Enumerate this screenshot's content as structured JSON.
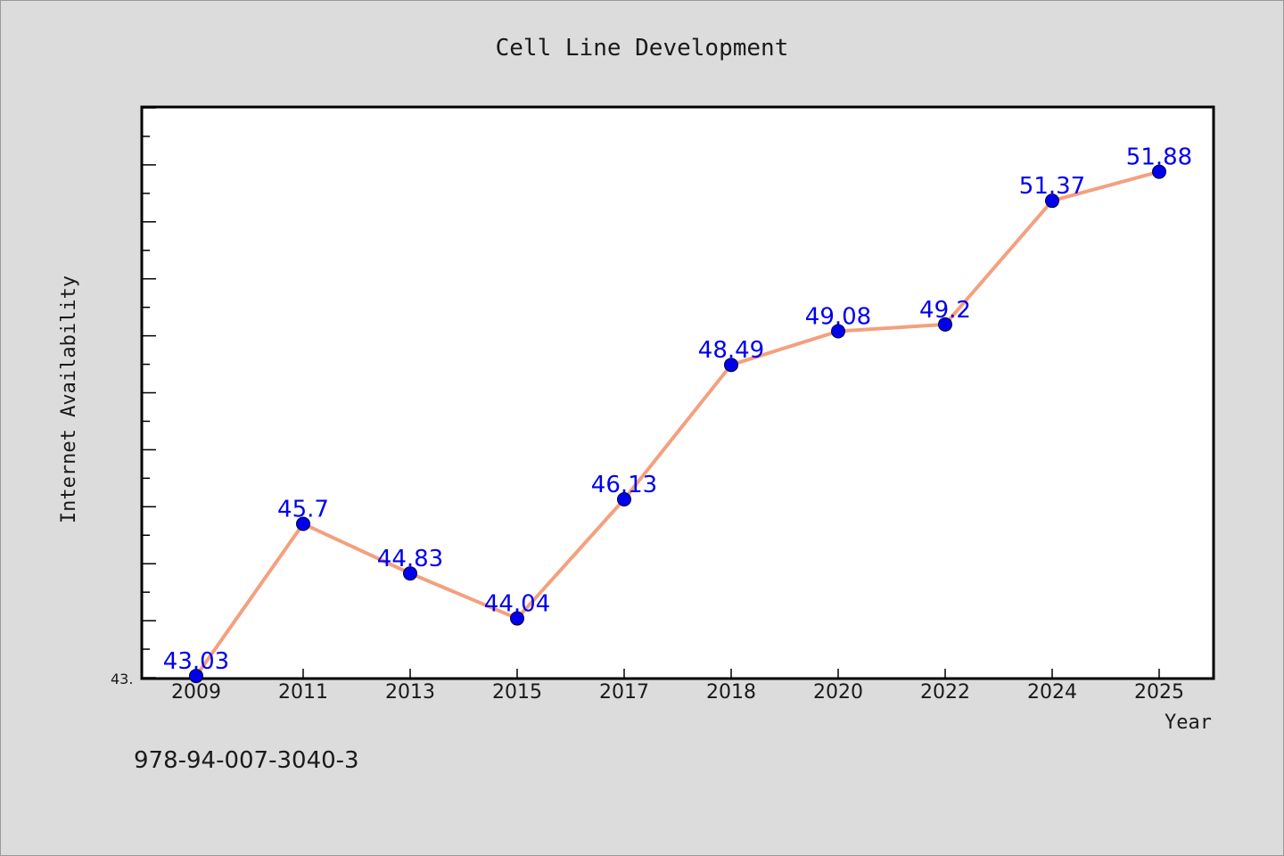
{
  "chart_data": {
    "type": "line",
    "title": "Cell Line Development",
    "xlabel": "Year",
    "ylabel": "Internet Availability",
    "categories": [
      "2009",
      "2011",
      "2013",
      "2015",
      "2017",
      "2018",
      "2020",
      "2022",
      "2024",
      "2025"
    ],
    "series": [
      {
        "values": [
          43.03,
          45.7,
          44.83,
          44.04,
          46.13,
          48.49,
          49.08,
          49.2,
          51.37,
          51.88
        ],
        "labels": [
          "43.03",
          "45.7",
          "44.83",
          "44.04",
          "46.13",
          "48.49",
          "49.08",
          "49.2",
          "51.37",
          "51.88"
        ],
        "line_color": "#f4a07e",
        "marker_color": "#0000ee"
      }
    ],
    "ytick_label": "43.",
    "ylim": [
      43.0,
      53.0
    ],
    "grid": false,
    "legend": "none"
  },
  "footer_text": "978-94-007-3040-3",
  "colors": {
    "background": "#dcdcdc",
    "plot_area": "#ffffff",
    "data_label": "#0000ee",
    "text": "#1a1a1a"
  }
}
